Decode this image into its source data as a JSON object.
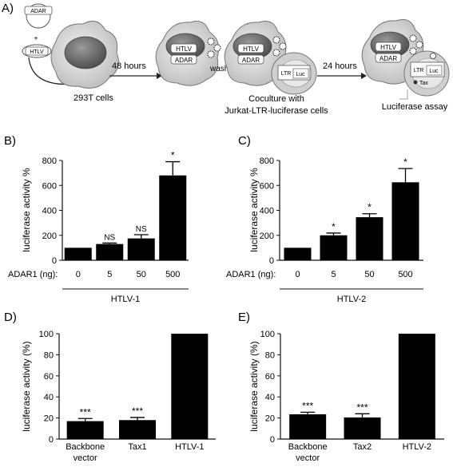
{
  "panel_a": {
    "label": "A)",
    "plasmid_adar": "ADAR",
    "plasmid_htlv": "HTLV",
    "plus": "+",
    "cell_caption": "293T cells",
    "step1": "48 hours",
    "step2": "wash",
    "step3": "24 hours",
    "cell_htlv": "HTLV",
    "cell_adar": "ADAR",
    "ltr": "LTR",
    "luc": "Luc",
    "tax": "Tax",
    "coculture_line1": "Coculture with",
    "coculture_line2": "Jurkat-LTR-luciferase cells",
    "assay": "Luciferase assay"
  },
  "chart_data": [
    {
      "panel": "B)",
      "type": "bar",
      "ylabel": "luciferase activity %",
      "ylim": [
        0,
        800
      ],
      "yticks": [
        "0",
        "200",
        "400",
        "600",
        "800"
      ],
      "xprefix": "ADAR1 (ng):",
      "categories": [
        "0",
        "5",
        "50",
        "500"
      ],
      "values": [
        100,
        130,
        175,
        680
      ],
      "errors": [
        0,
        8,
        30,
        110
      ],
      "annotations": [
        "",
        "NS",
        "NS",
        "*"
      ],
      "group_label": "HTLV-1"
    },
    {
      "panel": "C)",
      "type": "bar",
      "ylabel": "luciferase activity %",
      "ylim": [
        0,
        800
      ],
      "yticks": [
        "0",
        "200",
        "400",
        "600",
        "800"
      ],
      "xprefix": "ADAR1 (ng):",
      "categories": [
        "0",
        "5",
        "50",
        "500"
      ],
      "values": [
        100,
        200,
        345,
        625
      ],
      "errors": [
        0,
        18,
        28,
        110
      ],
      "annotations": [
        "",
        "*",
        "*",
        "*"
      ],
      "group_label": "HTLV-2"
    },
    {
      "panel": "D)",
      "type": "bar",
      "ylabel": "luciferase activity  (%)",
      "ylim": [
        0,
        100
      ],
      "yticks": [
        "0",
        "20",
        "40",
        "60",
        "80",
        "100"
      ],
      "categories": [
        [
          "Backbone",
          "vector"
        ],
        [
          "Tax1"
        ],
        [
          "HTLV-1"
        ]
      ],
      "values": [
        17,
        18,
        100
      ],
      "errors": [
        2.5,
        2.5,
        0
      ],
      "annotations": [
        "***",
        "***",
        ""
      ]
    },
    {
      "panel": "E)",
      "type": "bar",
      "ylabel": "luciferase activity  (%)",
      "ylim": [
        0,
        100
      ],
      "yticks": [
        "0",
        "20",
        "40",
        "60",
        "80",
        "100"
      ],
      "categories": [
        [
          "Backbone",
          "vector"
        ],
        [
          "Tax2"
        ],
        [
          "HTLV-2"
        ]
      ],
      "values": [
        23.5,
        20.5,
        100
      ],
      "errors": [
        2,
        3.5,
        0
      ],
      "annotations": [
        "***",
        "***",
        ""
      ]
    }
  ]
}
